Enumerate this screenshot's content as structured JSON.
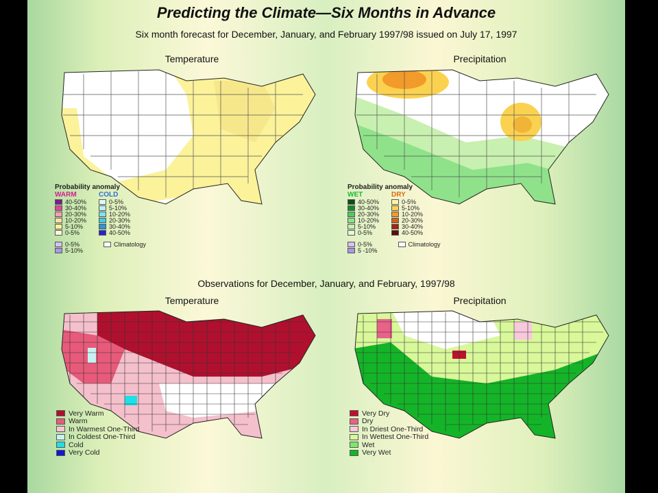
{
  "title": "Predicting the Climate—Six Months in Advance",
  "subtitle": "Six month forecast for December, January, and February 1997/98 issued on July 17, 1997",
  "observations_title": "Observations for December, January, and February, 1997/98",
  "forecast_temperature": {
    "label": "Temperature",
    "legend_title": "Probability anomaly",
    "warm_label": "WARM",
    "cold_label": "COLD",
    "warm_colors": [
      "#7a1e8c",
      "#e0469a",
      "#f59fb0",
      "#fbe0a3",
      "#fbf29a",
      "#fdf8d8"
    ],
    "cold_colors": [
      "#ddf8f8",
      "#b8f0f0",
      "#7fe2ee",
      "#48c8e0",
      "#2a98d8",
      "#2b22c8"
    ],
    "warm_items": [
      "40-50%",
      "30-40%",
      "20-30%",
      "10-20%",
      "5-10%",
      "0-5%"
    ],
    "cold_items": [
      "0-5%",
      "5-10%",
      "10-20%",
      "20-30%",
      "30-40%",
      "40-50%"
    ],
    "extra_items": [
      "0-5%",
      "5-10%"
    ],
    "extra_colors": [
      "#d8c0f0",
      "#a898e8"
    ],
    "climatology_label": "Climatology"
  },
  "forecast_precipitation": {
    "label": "Precipitation",
    "legend_title": "Probability anomaly",
    "wet_label": "WET",
    "dry_label": "DRY",
    "wet_colors": [
      "#0a4f1a",
      "#138a2c",
      "#4ccc5c",
      "#8fe28a",
      "#c8f0b0",
      "#e6f8d8"
    ],
    "dry_colors": [
      "#fff4a8",
      "#fbd250",
      "#f29a2a",
      "#d2601a",
      "#a02810",
      "#5a1008"
    ],
    "wet_items": [
      "40-50%",
      "30-40%",
      "20-30%",
      "10-20%",
      "5-10%",
      "0-5%"
    ],
    "dry_items": [
      "0-5%",
      "5-10%",
      "10-20%",
      "20-30%",
      "30-40%",
      "40-50%"
    ],
    "extra_items": [
      "0-5%",
      "5 -10%"
    ],
    "extra_colors": [
      "#d8c0f0",
      "#a898e8"
    ],
    "climatology_label": "Climatology"
  },
  "observed_temperature": {
    "label": "Temperature",
    "items": [
      "Very Warm",
      "Warm",
      "In Warmest One-Third",
      "In Coldest One-Third",
      "Cold",
      "Very Cold"
    ],
    "colors": [
      "#b0102e",
      "#e85a7a",
      "#f8c8d2",
      "#c8f2f2",
      "#1fe0e8",
      "#1416d0"
    ]
  },
  "observed_precipitation": {
    "label": "Precipitation",
    "items": [
      "Very Dry",
      "Dry",
      "In Driest One-Third",
      "In Wettest One-Third",
      "Wet",
      "Very Wet"
    ],
    "colors": [
      "#c0102e",
      "#e8628a",
      "#f8c8dc",
      "#d8f89a",
      "#7ce86a",
      "#14b428"
    ]
  }
}
